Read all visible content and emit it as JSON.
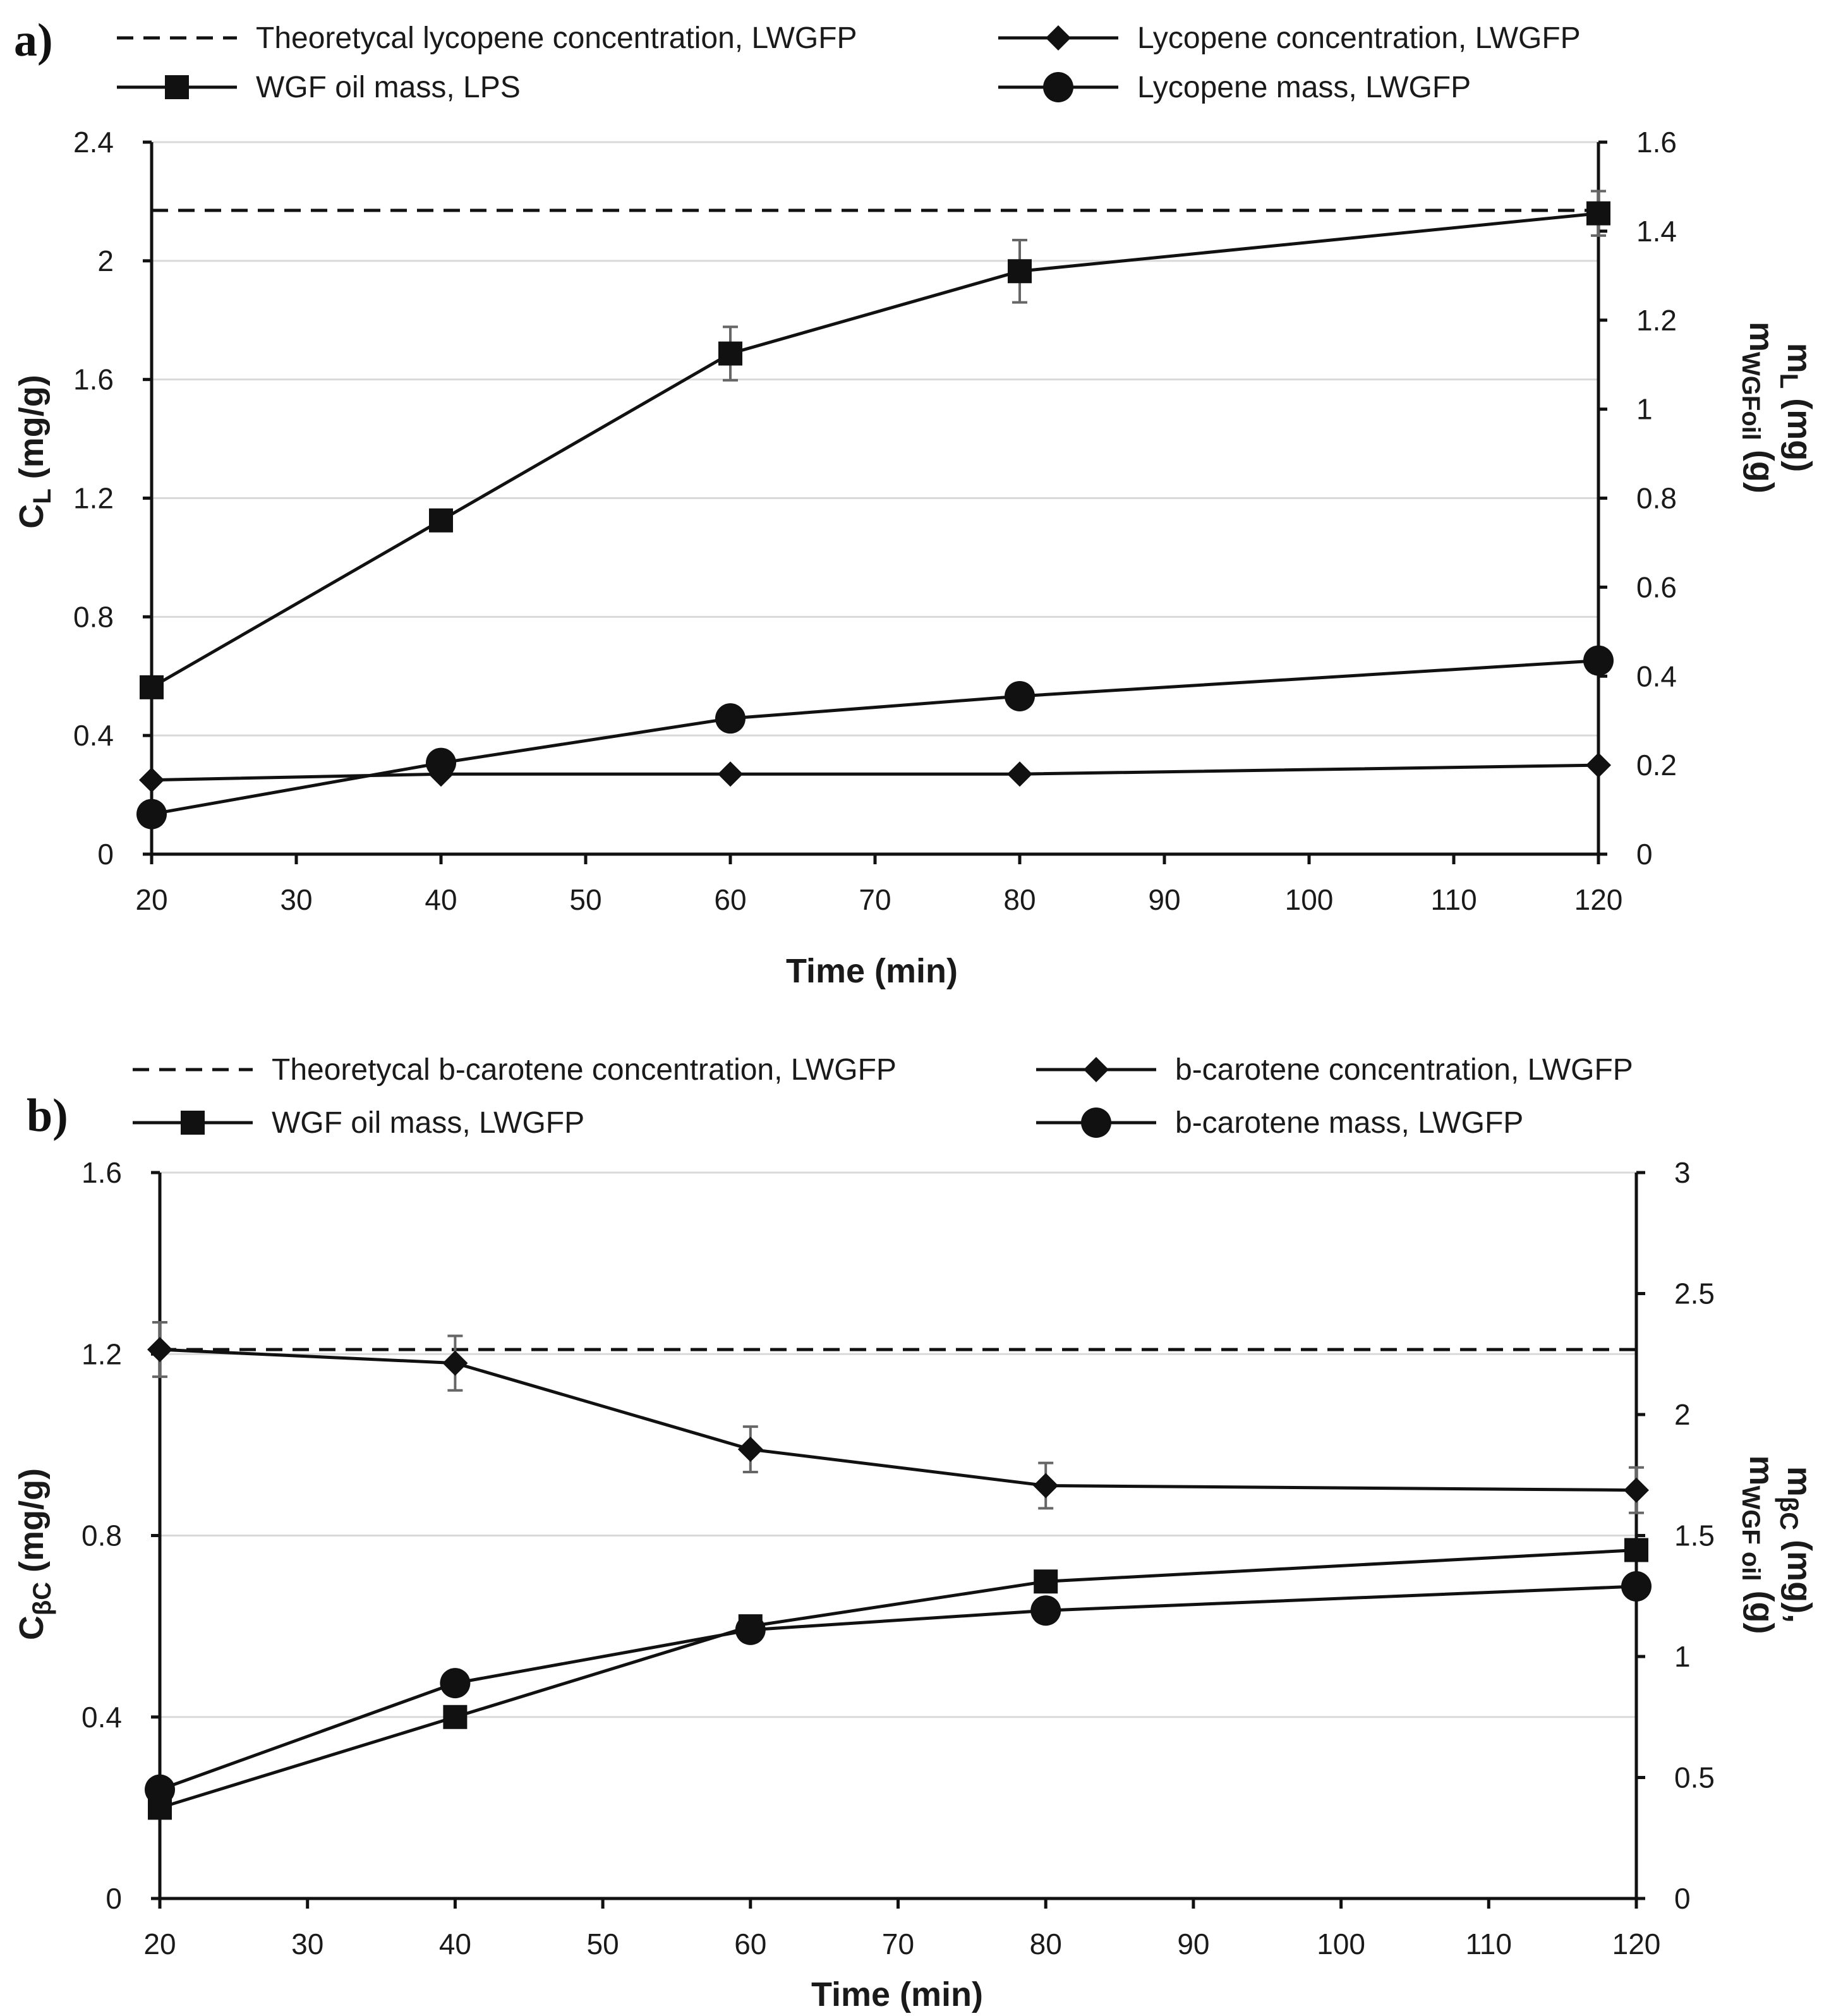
{
  "chart_data": [
    {
      "panel": "a)",
      "type": "line",
      "xlabel": "Time (min)",
      "ylabel_left": "C_L (mg/g)",
      "ylabel_right": "m_L (mg) m_WGFoil (g)",
      "xlim": [
        20,
        120
      ],
      "x_ticks": [
        20,
        30,
        40,
        50,
        60,
        70,
        80,
        90,
        100,
        110,
        120
      ],
      "ylim_left": [
        0,
        2.4
      ],
      "y_ticks_left": [
        0,
        0.4,
        0.8,
        1.2,
        1.6,
        2,
        2.4
      ],
      "ylim_right": [
        0,
        1.6
      ],
      "y_ticks_right": [
        0,
        0.2,
        0.4,
        0.6,
        0.8,
        1,
        1.2,
        1.4,
        1.6
      ],
      "series": [
        {
          "name": "Theoretycal lycopene concentration, LWGFP",
          "axis": "left",
          "style": "dashed",
          "marker": "none",
          "x": [
            20,
            120
          ],
          "values": [
            2.17,
            2.17
          ]
        },
        {
          "name": "Lycopene concentration, LWGFP",
          "axis": "left",
          "style": "solid",
          "marker": "diamond",
          "x": [
            20,
            40,
            60,
            80,
            120
          ],
          "values": [
            0.25,
            0.27,
            0.27,
            0.27,
            0.3
          ]
        },
        {
          "name": "WGF oil mass, LPS",
          "axis": "right",
          "style": "solid",
          "marker": "square",
          "x": [
            20,
            40,
            60,
            80,
            120
          ],
          "values": [
            0.375,
            0.75,
            1.125,
            1.31,
            1.44
          ],
          "err": [
            0.01,
            0.02,
            0.06,
            0.07,
            0.05
          ]
        },
        {
          "name": "Lycopene mass, LWGFP",
          "axis": "right",
          "style": "solid",
          "marker": "circle",
          "x": [
            20,
            40,
            60,
            80,
            120
          ],
          "values": [
            0.09,
            0.205,
            0.305,
            0.355,
            0.435
          ]
        }
      ]
    },
    {
      "panel": "b)",
      "type": "line",
      "xlabel": "Time (min)",
      "ylabel_left": "C_βC (mg/g)",
      "ylabel_right": "m_βC (mg), m_WGF oil (g)",
      "xlim": [
        20,
        120
      ],
      "x_ticks": [
        20,
        30,
        40,
        50,
        60,
        70,
        80,
        90,
        100,
        110,
        120
      ],
      "ylim_left": [
        0,
        1.6
      ],
      "y_ticks_left": [
        0,
        0.4,
        0.8,
        1.2,
        1.6
      ],
      "ylim_right": [
        0,
        3
      ],
      "y_ticks_right": [
        0,
        0.5,
        1,
        1.5,
        2,
        2.5,
        3
      ],
      "series": [
        {
          "name": "Theoretycal b-carotene concentration, LWGFP",
          "axis": "left",
          "style": "dashed",
          "marker": "none",
          "x": [
            20,
            120
          ],
          "values": [
            1.21,
            1.21
          ]
        },
        {
          "name": "b-carotene concentration, LWGFP",
          "axis": "left",
          "style": "solid",
          "marker": "diamond",
          "x": [
            20,
            40,
            60,
            80,
            120
          ],
          "values": [
            1.21,
            1.18,
            0.99,
            0.91,
            0.9
          ],
          "err": [
            0.06,
            0.06,
            0.05,
            0.05,
            0.05
          ]
        },
        {
          "name": "WGF oil mass, LWGFP",
          "axis": "right",
          "style": "solid",
          "marker": "square",
          "x": [
            20,
            40,
            60,
            80,
            120
          ],
          "values": [
            0.375,
            0.75,
            1.125,
            1.31,
            1.44
          ]
        },
        {
          "name": "b-carotene mass, LWGFP",
          "axis": "right",
          "style": "solid",
          "marker": "circle",
          "x": [
            20,
            40,
            60,
            80,
            120
          ],
          "values": [
            0.45,
            0.89,
            1.11,
            1.19,
            1.29
          ]
        }
      ]
    }
  ]
}
